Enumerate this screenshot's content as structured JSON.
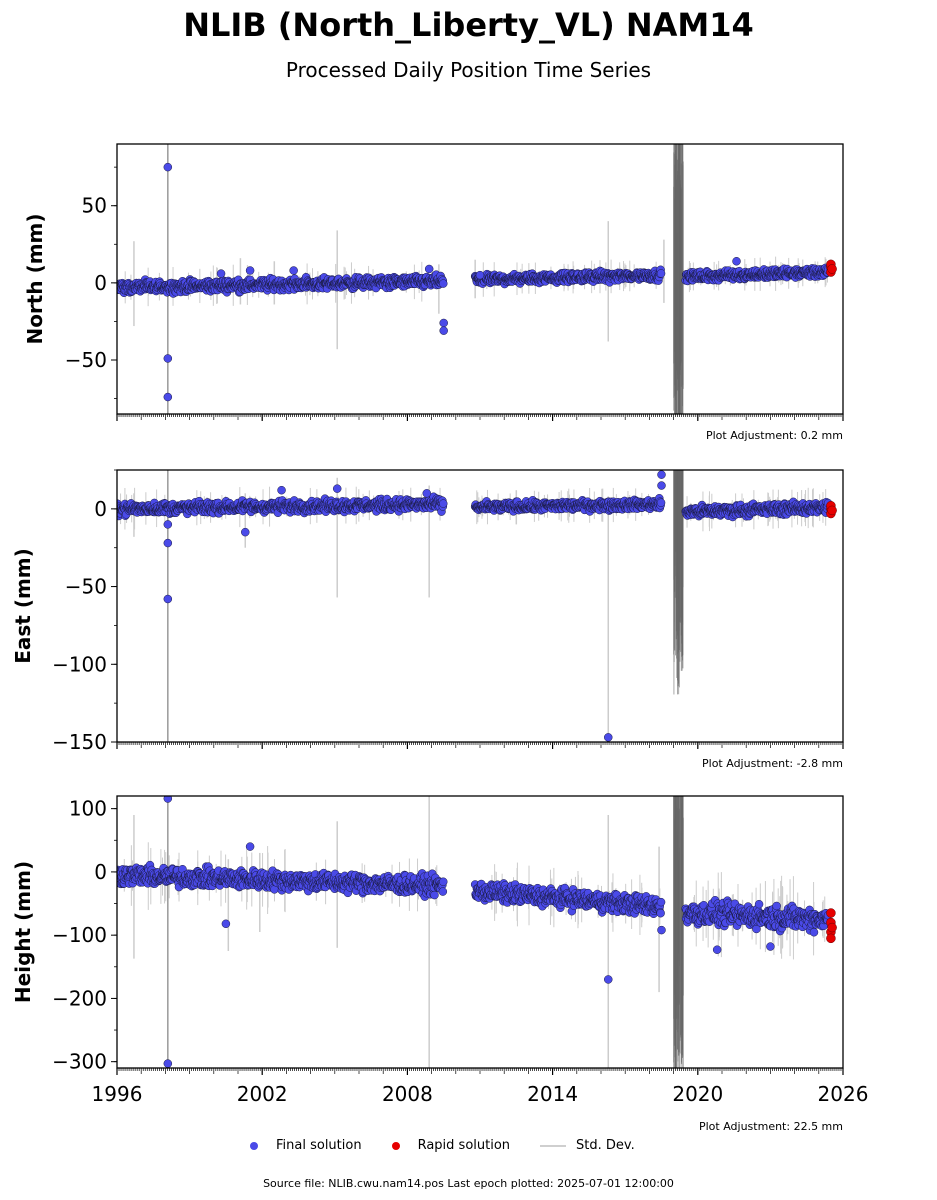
{
  "title": "NLIB (North_Liberty_VL) NAM14",
  "subtitle": "Processed Daily Position Time Series",
  "colors": {
    "final": "#4a4ae8",
    "rapid": "#e60000",
    "stddev": "#cccccc",
    "gap_noise": "#666666"
  },
  "legend": {
    "final": "Final solution",
    "rapid": "Rapid solution",
    "stddev": "Std. Dev."
  },
  "footer": "Source file: NLIB.cwu.nam14.pos  Last epoch plotted: 2025-07-01 12:00:00",
  "chart_data": [
    {
      "type": "scatter",
      "ylabel": "North (mm)",
      "xlim": [
        1996,
        2026
      ],
      "ylim": [
        -85,
        90
      ],
      "yticks": [
        -50,
        0,
        50
      ],
      "xticks": [
        1996,
        2002,
        2008,
        2014,
        2020,
        2026
      ],
      "adjustment": "Plot Adjustment: 0.2 mm",
      "segments": [
        {
          "x0": 1996.0,
          "x1": 2009.5,
          "y0": -3,
          "y1": 1,
          "spread": 3
        },
        {
          "x0": 2010.8,
          "x1": 2018.5,
          "y0": 2,
          "y1": 5,
          "spread": 2.5
        },
        {
          "x0": 2019.5,
          "x1": 2025.4,
          "y0": 4,
          "y1": 7,
          "spread": 2.5
        }
      ],
      "outliers": [
        [
          1998.1,
          75
        ],
        [
          1998.1,
          -49
        ],
        [
          1998.1,
          -74
        ],
        [
          2009.5,
          -26
        ],
        [
          2009.5,
          -31
        ],
        [
          2008.9,
          9
        ],
        [
          2000.3,
          6
        ],
        [
          2001.5,
          8
        ],
        [
          2021.6,
          14
        ],
        [
          2003.3,
          8
        ],
        [
          2011.0,
          5
        ]
      ],
      "rapid": [
        [
          2025.5,
          10
        ],
        [
          2025.5,
          7
        ],
        [
          2025.5,
          12
        ],
        [
          2025.55,
          9
        ]
      ],
      "errorbars": [
        [
          1996.7,
          -28,
          27
        ],
        [
          2005.1,
          -43,
          34
        ],
        [
          2016.3,
          -38,
          40
        ],
        [
          2010.8,
          -10,
          15
        ],
        [
          2002.5,
          -14,
          14
        ],
        [
          2009.3,
          -20,
          12
        ],
        [
          2001.1,
          -14,
          16
        ],
        [
          2018.6,
          -13,
          28
        ]
      ],
      "noise_band": [
        2019.0,
        2019.4
      ]
    },
    {
      "type": "scatter",
      "ylabel": "East (mm)",
      "xlim": [
        1996,
        2026
      ],
      "ylim": [
        -150,
        25
      ],
      "yticks": [
        -150,
        -100,
        -50,
        0
      ],
      "xticks": [
        1996,
        2002,
        2008,
        2014,
        2020,
        2026
      ],
      "adjustment": "Plot Adjustment: -2.8 mm",
      "segments": [
        {
          "x0": 1996.0,
          "x1": 2009.5,
          "y0": 0,
          "y1": 3,
          "spread": 3
        },
        {
          "x0": 2010.8,
          "x1": 2018.5,
          "y0": 1,
          "y1": 3,
          "spread": 2.5
        },
        {
          "x0": 2019.5,
          "x1": 2025.4,
          "y0": -2,
          "y1": 1,
          "spread": 3
        }
      ],
      "outliers": [
        [
          1998.1,
          -10
        ],
        [
          1998.1,
          -22
        ],
        [
          1998.1,
          -58
        ],
        [
          2016.3,
          -147
        ],
        [
          2001.3,
          -15
        ],
        [
          2005.1,
          13
        ],
        [
          2018.5,
          22
        ],
        [
          2018.5,
          15
        ],
        [
          2008.8,
          10
        ],
        [
          2002.8,
          12
        ]
      ],
      "rapid": [
        [
          2025.5,
          0
        ],
        [
          2025.5,
          -3
        ],
        [
          2025.5,
          2
        ],
        [
          2025.55,
          -1
        ]
      ],
      "errorbars": [
        [
          2005.1,
          -57,
          20
        ],
        [
          2008.9,
          -57,
          15
        ],
        [
          2016.3,
          -147,
          8
        ],
        [
          2001.3,
          -25,
          10
        ],
        [
          1996.7,
          -18,
          10
        ],
        [
          2012.5,
          -10,
          12
        ]
      ],
      "noise_band": [
        2019.0,
        2019.4
      ]
    },
    {
      "type": "scatter",
      "ylabel": "Height (mm)",
      "xlim": [
        1996,
        2026
      ],
      "ylim": [
        -310,
        120
      ],
      "yticks": [
        -300,
        -200,
        -100,
        0,
        100
      ],
      "xticks": [
        1996,
        2002,
        2008,
        2014,
        2020,
        2026
      ],
      "xticklabels": [
        "1996",
        "2002",
        "2008",
        "2014",
        "2020",
        "2026"
      ],
      "adjustment": "Plot Adjustment: 22.5 mm",
      "segments": [
        {
          "x0": 1996.0,
          "x1": 2009.5,
          "y0": -5,
          "y1": -22,
          "spread": 12
        },
        {
          "x0": 2010.8,
          "x1": 2018.5,
          "y0": -30,
          "y1": -55,
          "spread": 12
        },
        {
          "x0": 2019.5,
          "x1": 2025.4,
          "y0": -65,
          "y1": -75,
          "spread": 15
        }
      ],
      "outliers": [
        [
          1998.1,
          116
        ],
        [
          1998.1,
          -303
        ],
        [
          2016.3,
          -170
        ],
        [
          2000.5,
          -82
        ],
        [
          2001.5,
          40
        ],
        [
          2018.5,
          -92
        ],
        [
          2020.8,
          -123
        ],
        [
          2023.0,
          -118
        ]
      ],
      "rapid": [
        [
          2025.5,
          -65
        ],
        [
          2025.5,
          -80
        ],
        [
          2025.5,
          -95
        ],
        [
          2025.5,
          -105
        ],
        [
          2025.55,
          -88
        ]
      ],
      "errorbars": [
        [
          1996.7,
          -137,
          90
        ],
        [
          2005.1,
          -120,
          80
        ],
        [
          2008.9,
          -310,
          120
        ],
        [
          2016.3,
          -310,
          90
        ],
        [
          2018.4,
          -190,
          40
        ],
        [
          2000.6,
          -125,
          20
        ],
        [
          2001.9,
          -95,
          30
        ]
      ],
      "noise_band": [
        2019.0,
        2019.4
      ]
    }
  ]
}
